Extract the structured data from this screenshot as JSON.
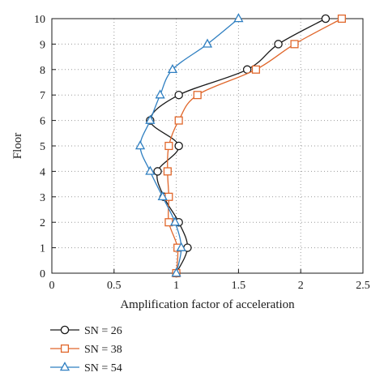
{
  "chart_data": {
    "type": "line",
    "xlabel": "Amplification factor of acceleration",
    "ylabel": "Floor",
    "xlim": [
      0,
      2.5
    ],
    "ylim": [
      0,
      10
    ],
    "x_ticks": [
      "0",
      "0.5",
      "1",
      "1.5",
      "2",
      "2.5"
    ],
    "y_ticks": [
      "0",
      "1",
      "2",
      "3",
      "4",
      "5",
      "6",
      "7",
      "8",
      "9",
      "10"
    ],
    "grid": "dotted",
    "legend_position": "bottom-left",
    "series": [
      {
        "name": "SN = 26",
        "color": "#1a1a1a",
        "marker": "circle",
        "floors": [
          0,
          1,
          2,
          3,
          4,
          5,
          6,
          7,
          8,
          9,
          10
        ],
        "values": [
          1.0,
          1.09,
          1.02,
          0.9,
          0.85,
          1.02,
          0.79,
          1.02,
          1.57,
          1.82,
          2.2
        ]
      },
      {
        "name": "SN = 38",
        "color": "#e0662a",
        "marker": "square",
        "floors": [
          0,
          1,
          2,
          3,
          4,
          5,
          6,
          7,
          8,
          9,
          10
        ],
        "values": [
          1.0,
          1.01,
          0.94,
          0.94,
          0.93,
          0.94,
          1.02,
          1.17,
          1.64,
          1.95,
          2.33
        ]
      },
      {
        "name": "SN = 54",
        "color": "#2f7fc1",
        "marker": "triangle",
        "floors": [
          0,
          1,
          2,
          3,
          4,
          5,
          6,
          7,
          8,
          9,
          10
        ],
        "values": [
          1.0,
          1.04,
          0.99,
          0.89,
          0.79,
          0.71,
          0.79,
          0.87,
          0.97,
          1.25,
          1.5
        ]
      }
    ]
  }
}
